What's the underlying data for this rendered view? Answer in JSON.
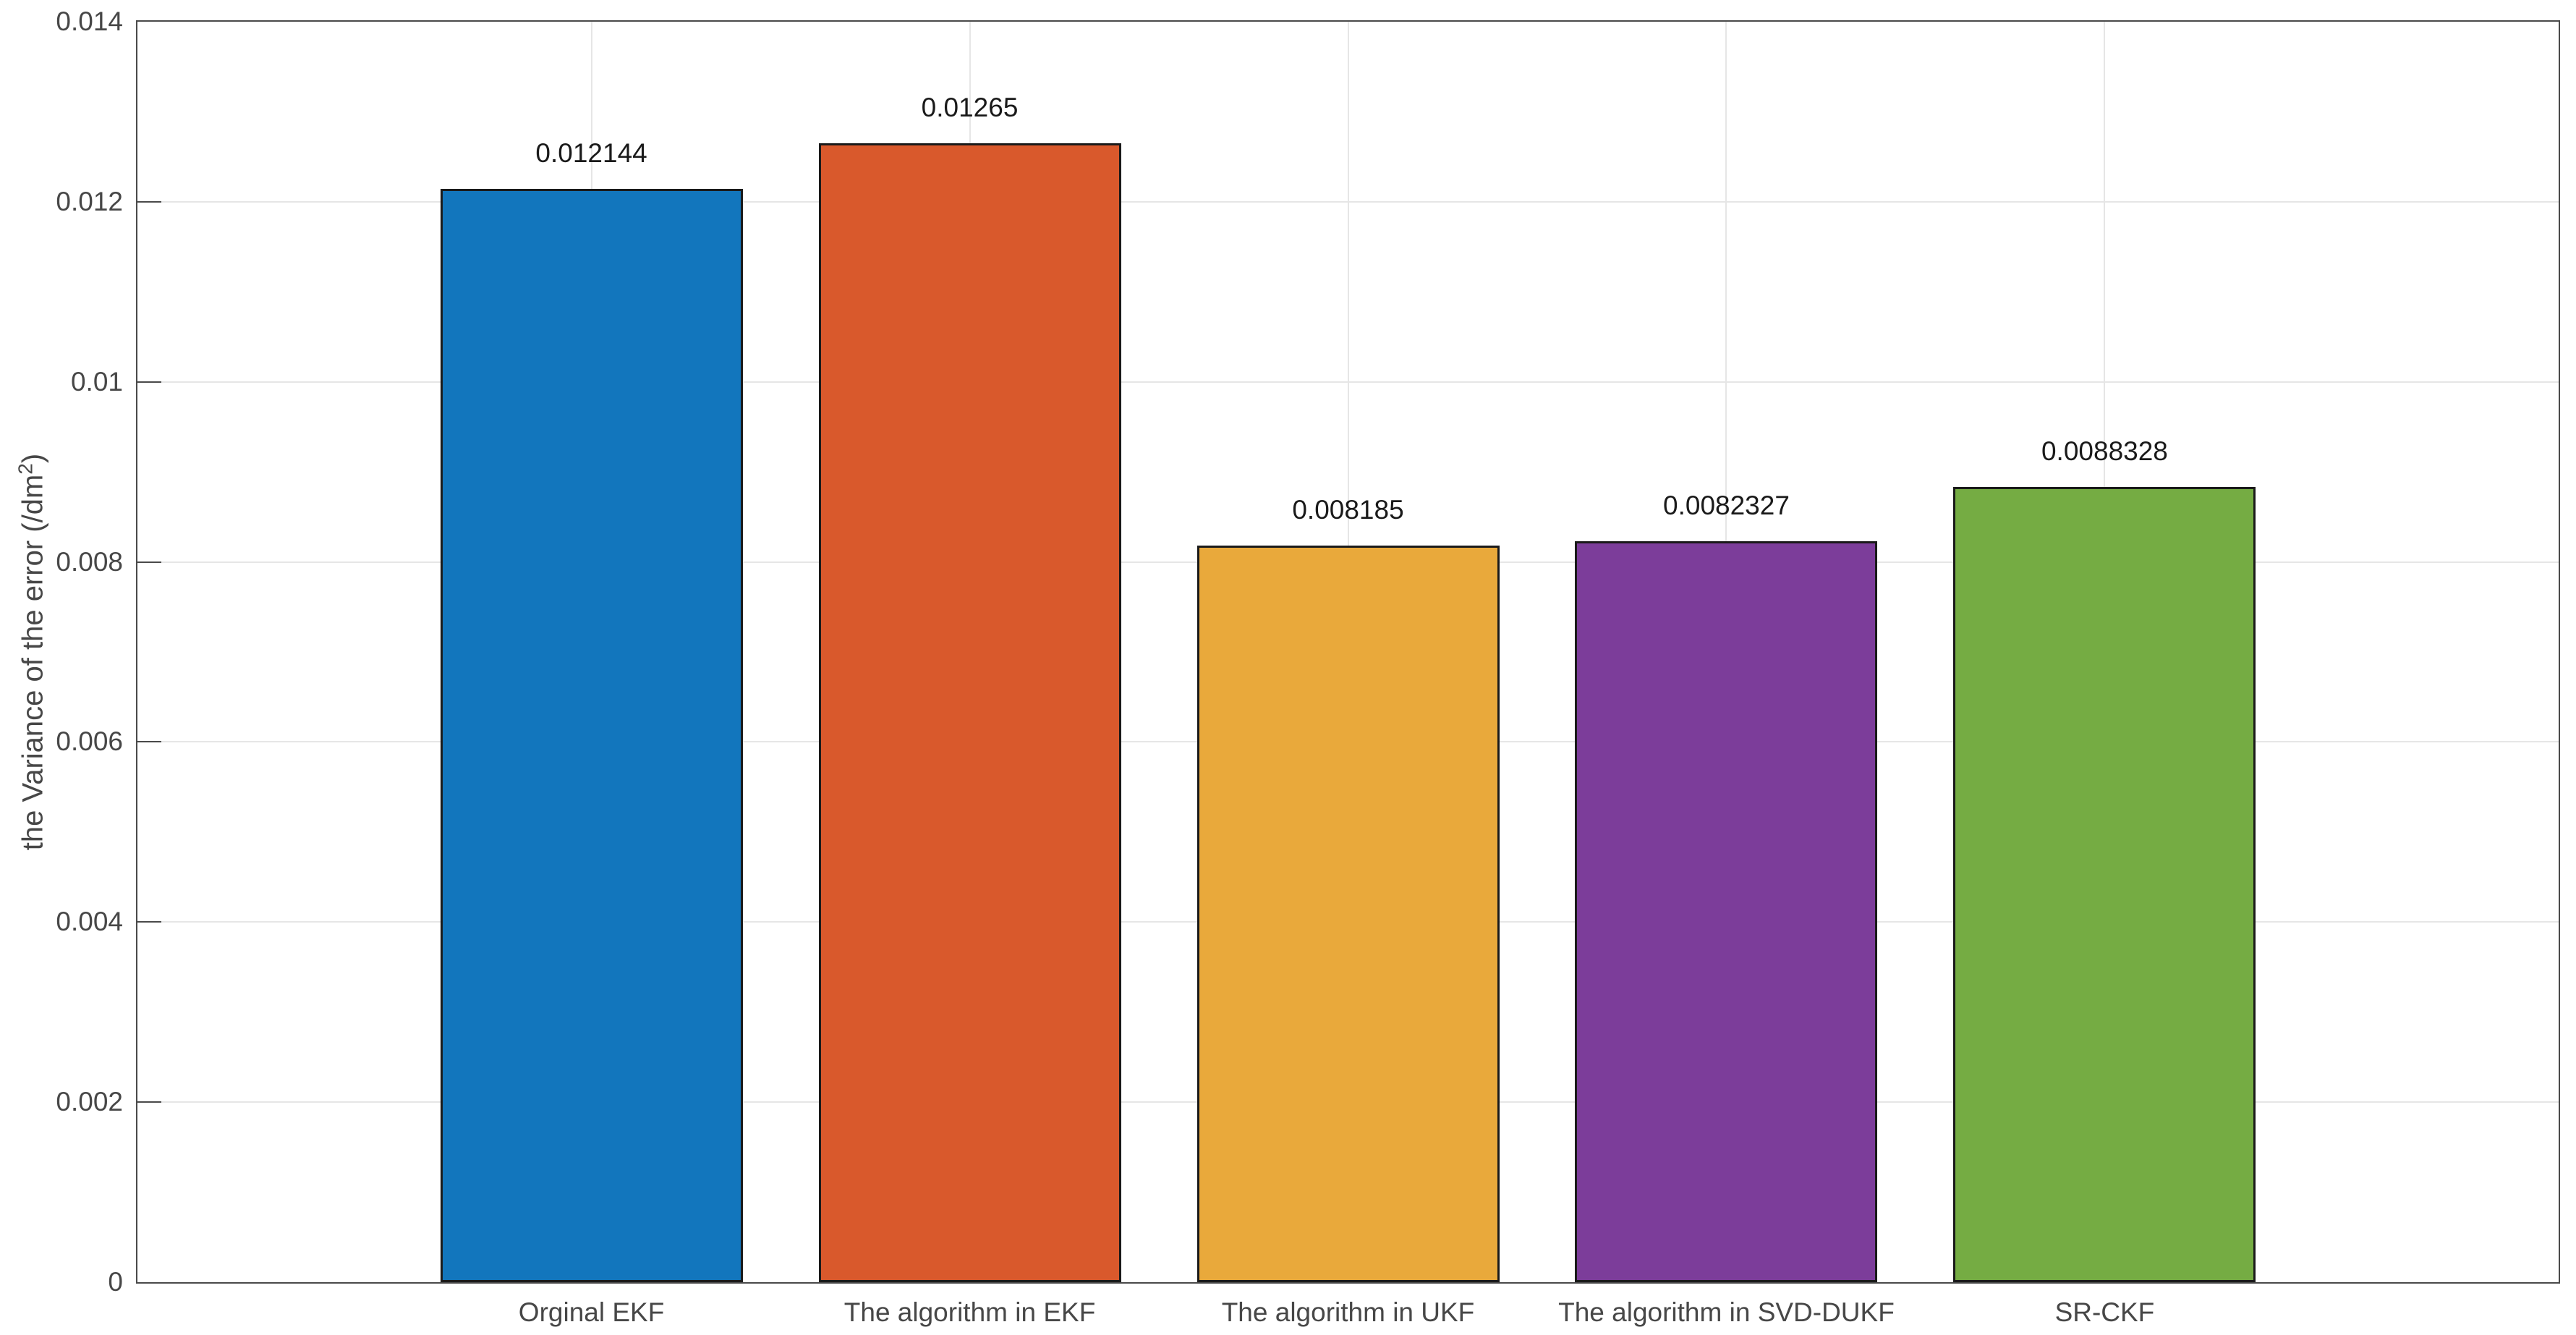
{
  "chart_data": {
    "type": "bar",
    "title": "",
    "xlabel": "",
    "ylabel": "the Variance of the error (/dm²)",
    "ylabel_base": "the Variance of the error (/dm",
    "ylabel_sup": "2",
    "ylabel_close": ")",
    "categories": [
      "Orginal EKF",
      "The algorithm in EKF",
      "The algorithm in UKF",
      "The algorithm in SVD-DUKF",
      "SR-CKF"
    ],
    "values": [
      0.012144,
      0.01265,
      0.008185,
      0.0082327,
      0.0088328
    ],
    "value_labels": [
      "0.012144",
      "0.01265",
      "0.008185",
      "0.0082327",
      "0.0088328"
    ],
    "bar_colors": [
      "#1276BD",
      "#D9592C",
      "#E9A93B",
      "#7C3D9A",
      "#75AC43"
    ],
    "bar_edge_color": "#1a1a1a",
    "ylim": [
      0,
      0.014
    ],
    "xlim": [
      -0.2,
      6.2
    ],
    "bar_width_units": 0.8,
    "ytick_values": [
      0,
      0.002,
      0.004,
      0.006,
      0.008,
      0.01,
      0.012,
      0.014
    ],
    "ytick_labels": [
      "0",
      "0.002",
      "0.004",
      "0.006",
      "0.008",
      "0.01",
      "0.012",
      "0.014"
    ],
    "grid": "on",
    "legend": "none",
    "axis_color": "#4a4a4a",
    "grid_color": "#e6e6e6",
    "tick_label_color": "#474747",
    "background": "#ffffff"
  }
}
